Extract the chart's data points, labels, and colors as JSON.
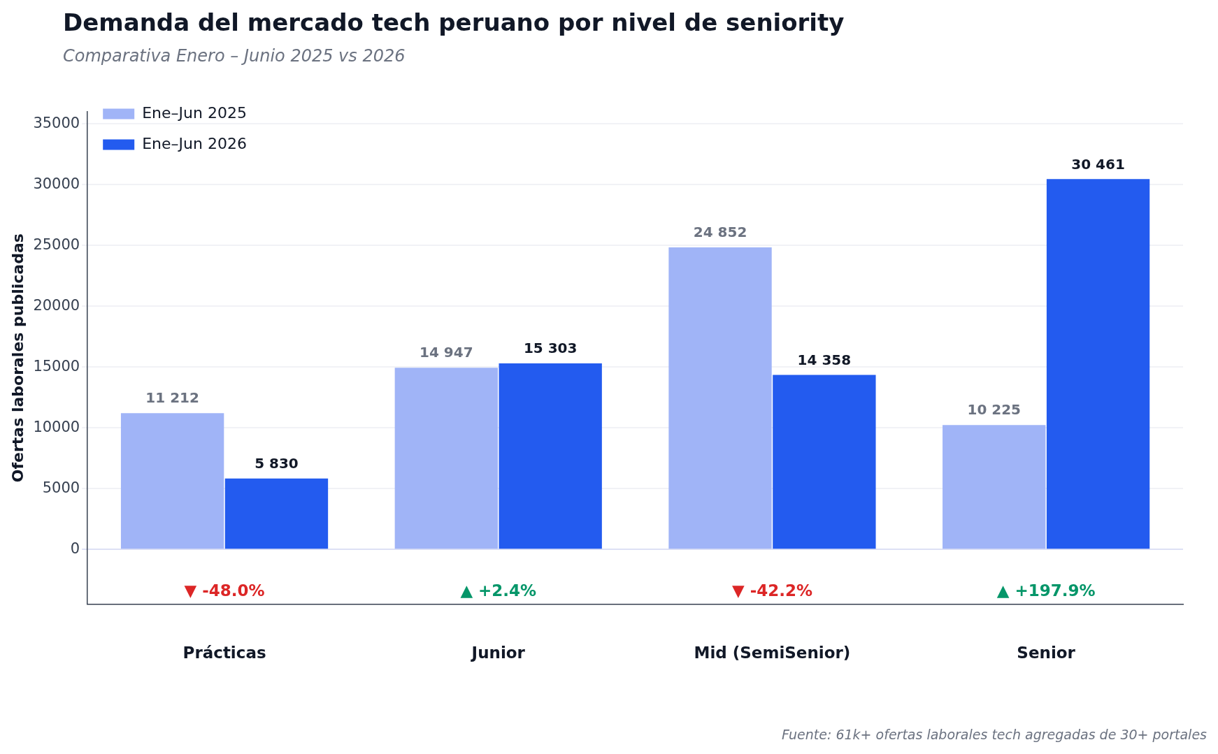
{
  "chart_data": {
    "type": "bar",
    "title": "Demanda del mercado tech peruano por nivel de seniority",
    "subtitle": "Comparativa Enero – Junio 2025 vs 2026",
    "ylabel": "Ofertas laborales publicadas",
    "categories": [
      "Prácticas",
      "Junior",
      "Mid (SemiSenior)",
      "Senior"
    ],
    "series": [
      {
        "name": "Ene–Jun 2025",
        "color": "#a0b4f7",
        "values": [
          11212,
          14947,
          24852,
          10225
        ],
        "value_labels": [
          "11 212",
          "14 947",
          "24 852",
          "10 225"
        ]
      },
      {
        "name": "Ene–Jun 2026",
        "color": "#235bef",
        "values": [
          5830,
          15303,
          14358,
          30461
        ],
        "value_labels": [
          "5 830",
          "15 303",
          "14 358",
          "30 461"
        ]
      }
    ],
    "ylim": [
      -4500,
      36000
    ],
    "yticks": [
      0,
      5000,
      10000,
      15000,
      20000,
      25000,
      30000,
      35000
    ],
    "grid": "y",
    "legend": "top left",
    "annotations": [
      "▼ -48.0%",
      "▲ +2.4%",
      "▼ -42.2%",
      "▲ +197.9%",
      "Fuente: 61k+ ofertas laborales tech agregadas de 30+ portales"
    ]
  }
}
